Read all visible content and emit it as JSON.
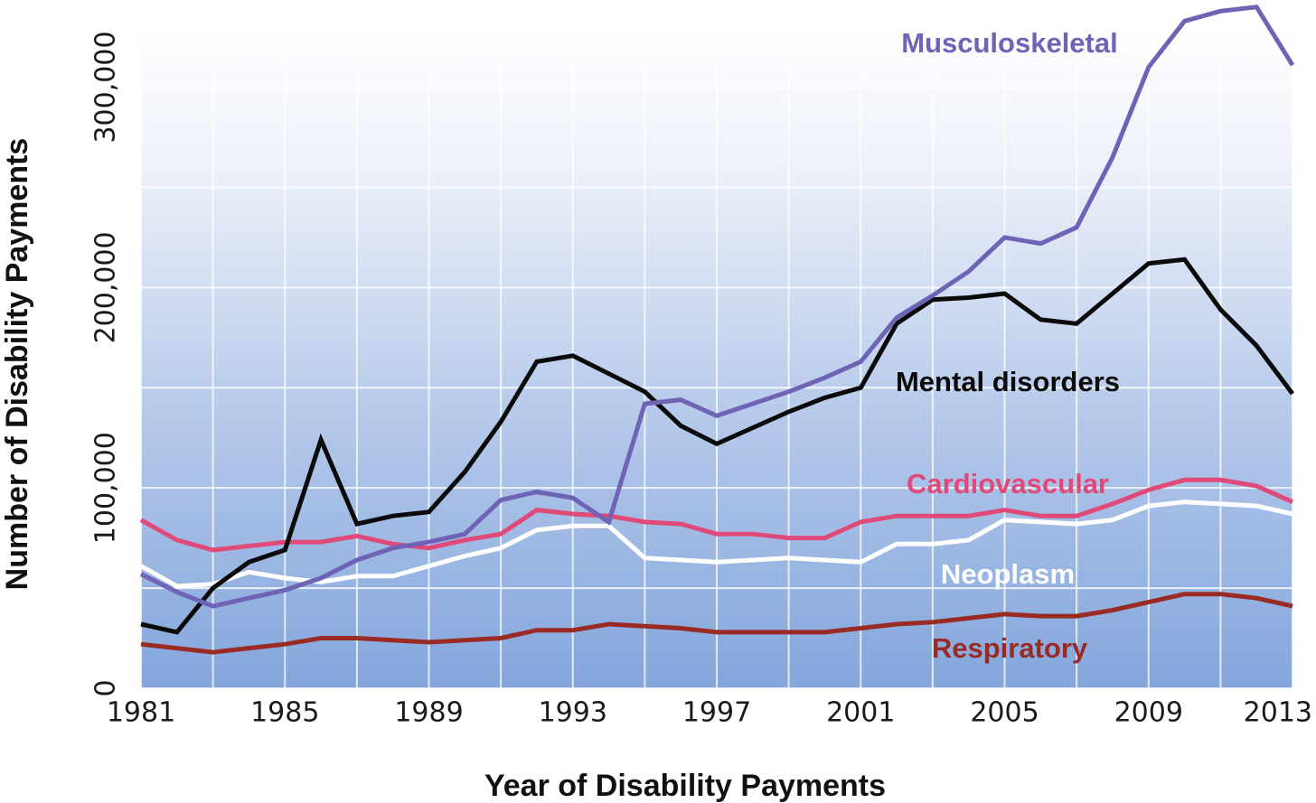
{
  "chart_data": {
    "type": "line",
    "title": "",
    "xlabel": "Year of Disability Payments",
    "ylabel": "Number of Disability Payments",
    "xlim": [
      1981,
      2013
    ],
    "ylim": [
      0,
      330000
    ],
    "x_ticks": [
      1981,
      1985,
      1989,
      1993,
      1997,
      2001,
      2005,
      2009,
      2013
    ],
    "x_tick_labels": [
      "1981",
      "1985",
      "1989",
      "1993",
      "1997",
      "2001",
      "2005",
      "2009",
      "2013"
    ],
    "y_ticks": [
      0,
      100000,
      200000,
      300000
    ],
    "y_tick_labels": [
      "0",
      "100,000",
      "200,000",
      "300,000"
    ],
    "grid": true,
    "legend": "direct labels on lines",
    "x": [
      1981,
      1982,
      1983,
      1984,
      1985,
      1986,
      1987,
      1988,
      1989,
      1990,
      1991,
      1992,
      1993,
      1994,
      1995,
      1996,
      1997,
      1998,
      1999,
      2000,
      2001,
      2002,
      2003,
      2004,
      2005,
      2006,
      2007,
      2008,
      2009,
      2010,
      2011,
      2012,
      2013
    ],
    "series": [
      {
        "name": "Musculoskeletal",
        "color": "#6e63b5",
        "values": [
          57000,
          48000,
          41000,
          45000,
          49000,
          55000,
          64000,
          70000,
          73000,
          77000,
          94000,
          98000,
          95000,
          83000,
          142000,
          144000,
          136000,
          142000,
          148000,
          155000,
          163000,
          185000,
          196000,
          208000,
          225000,
          222000,
          230000,
          265000,
          310000,
          333000,
          338000,
          340000,
          311000
        ]
      },
      {
        "name": "Mental disorders",
        "color": "#0a0a0a",
        "values": [
          32000,
          28000,
          50000,
          63000,
          69000,
          124000,
          82000,
          86000,
          88000,
          108000,
          133000,
          163000,
          166000,
          157000,
          148000,
          131000,
          122000,
          130000,
          138000,
          145000,
          150000,
          182000,
          194000,
          195000,
          197000,
          184000,
          182000,
          197000,
          212000,
          214000,
          189000,
          171000,
          147000
        ]
      },
      {
        "name": "Cardiovascular",
        "color": "#e04a78",
        "values": [
          84000,
          74000,
          69000,
          71000,
          73000,
          73000,
          76000,
          72000,
          70000,
          74000,
          77000,
          89000,
          87000,
          86000,
          83000,
          82000,
          77000,
          77000,
          75000,
          75000,
          83000,
          86000,
          86000,
          86000,
          89000,
          86000,
          86000,
          92000,
          99000,
          104000,
          104000,
          101000,
          93000
        ]
      },
      {
        "name": "Neoplasm",
        "color": "#ffffff",
        "values": [
          61000,
          51000,
          52000,
          58000,
          55000,
          53000,
          56000,
          56000,
          61000,
          66000,
          70000,
          79000,
          81000,
          81000,
          65000,
          64000,
          63000,
          64000,
          65000,
          64000,
          63000,
          72000,
          72000,
          74000,
          84000,
          83000,
          82000,
          84000,
          91000,
          93000,
          92000,
          91000,
          87000
        ]
      },
      {
        "name": "Respiratory",
        "color": "#9a2a24",
        "values": [
          22000,
          20000,
          18000,
          20000,
          22000,
          25000,
          25000,
          24000,
          23000,
          24000,
          25000,
          29000,
          29000,
          32000,
          31000,
          30000,
          28000,
          28000,
          28000,
          28000,
          30000,
          32000,
          33000,
          35000,
          37000,
          36000,
          36000,
          39000,
          43000,
          47000,
          47000,
          45000,
          41000
        ]
      }
    ],
    "annotations": [
      "Musculoskeletal",
      "Mental disorders",
      "Cardiovascular",
      "Neoplasm",
      "Respiratory"
    ]
  }
}
